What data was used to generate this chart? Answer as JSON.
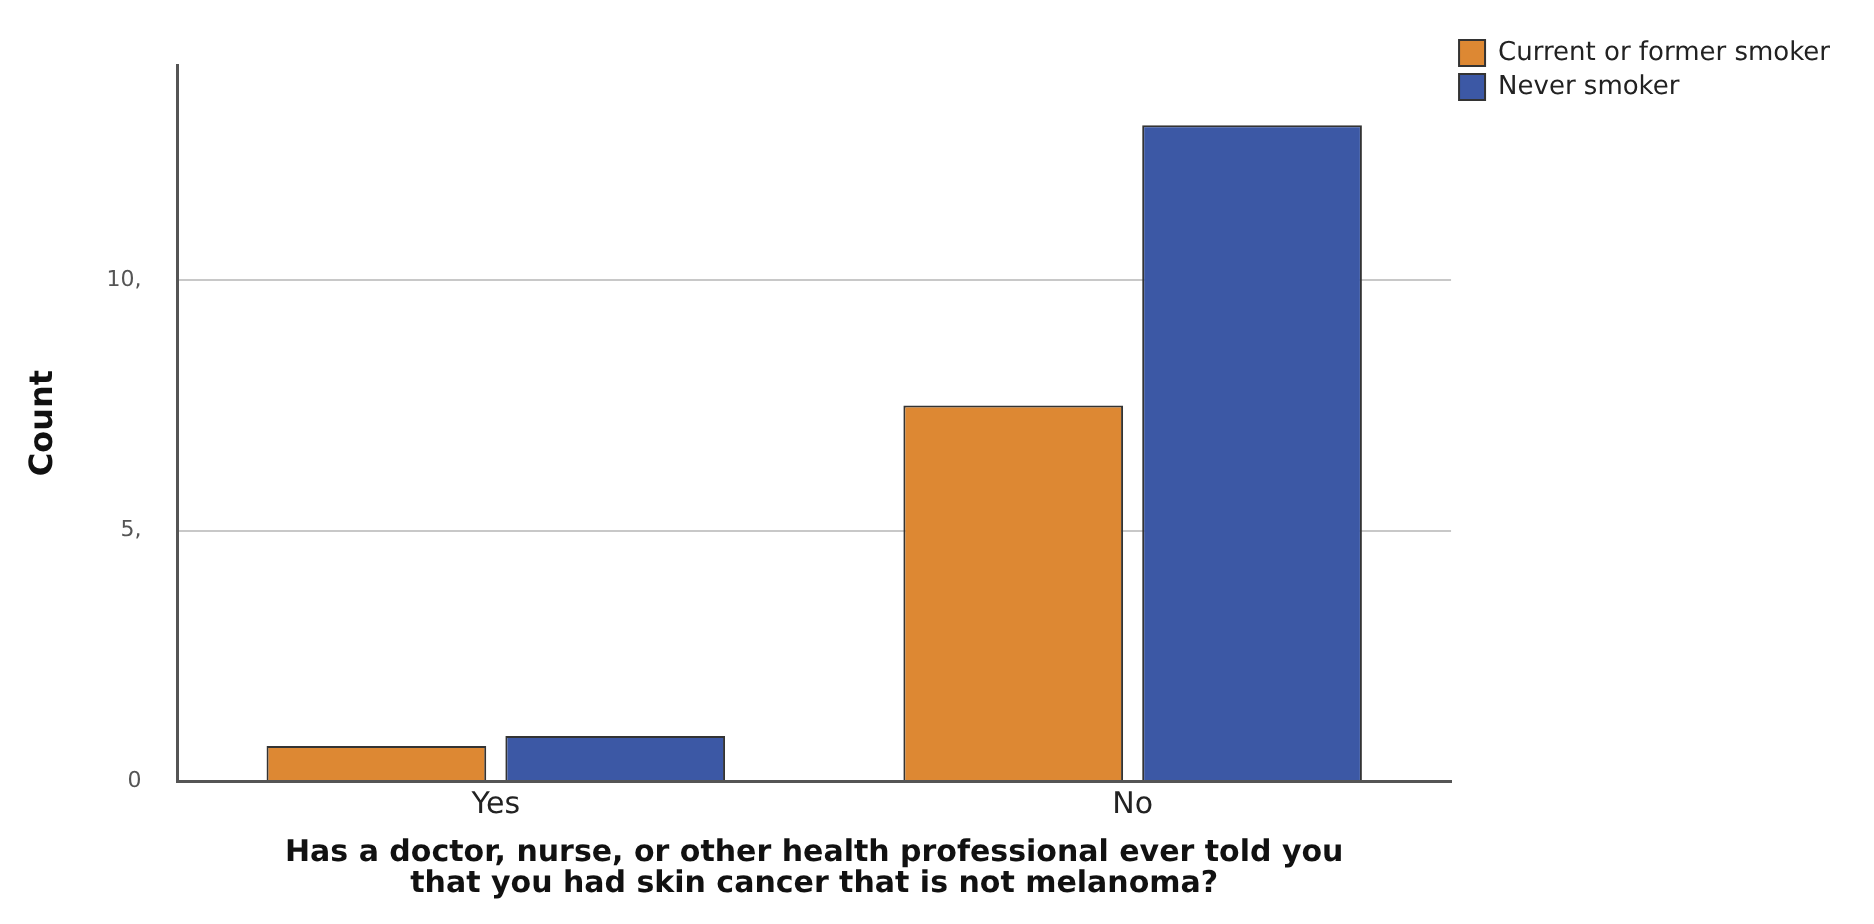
{
  "chart_data": {
    "type": "bar",
    "xlabel": "Has a doctor, nurse, or other health professional ever told you\nthat you had skin cancer that is not melanoma?",
    "ylabel": "Count",
    "categories": [
      "Yes",
      "No"
    ],
    "series": [
      {
        "name": "Current or former smoker",
        "color": "#dd8833",
        "values": [
          0.7,
          7.5
        ]
      },
      {
        "name": "Never smoker",
        "color": "#3c58a5",
        "values": [
          0.9,
          13.1
        ]
      }
    ],
    "ylim": [
      0,
      14.3
    ],
    "yticks": [
      {
        "value": 0,
        "label": "0"
      },
      {
        "value": 5,
        "label": "5,"
      },
      {
        "value": 10,
        "label": "10,"
      }
    ],
    "grid": "y",
    "legend": "top right"
  }
}
